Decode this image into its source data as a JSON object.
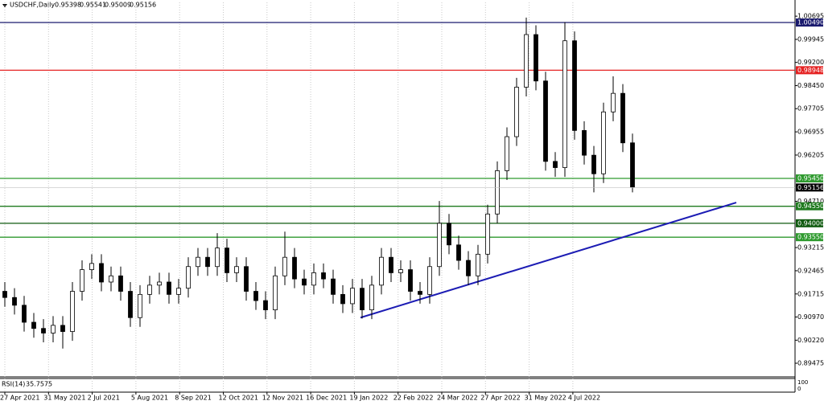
{
  "chart_data": {
    "type": "candlestick",
    "symbol": "USDCHF,Daily",
    "last_bar": [
      0.95398,
      0.95541,
      0.95009,
      0.95156
    ],
    "open": [
      0.918,
      0.916,
      0.9135,
      0.908,
      0.906,
      0.9045,
      0.907,
      0.905,
      0.918,
      0.925,
      0.927,
      0.921,
      0.923,
      0.918,
      0.9095,
      0.917,
      0.92,
      0.921,
      0.917,
      0.919,
      0.926,
      0.929,
      0.926,
      0.932,
      0.924,
      0.926,
      0.918,
      0.915,
      0.912,
      0.923,
      0.929,
      0.922,
      0.92,
      0.924,
      0.922,
      0.917,
      0.914,
      0.919,
      0.912,
      0.92,
      0.929,
      0.924,
      0.925,
      0.918,
      0.917,
      0.926,
      0.94,
      0.933,
      0.928,
      0.923,
      0.93,
      0.943,
      0.957,
      0.968,
      0.984,
      1.001,
      0.986,
      0.96,
      0.958,
      0.999,
      0.97,
      0.962,
      0.956,
      0.976,
      0.982,
      0.966
    ],
    "high": [
      0.921,
      0.919,
      0.9165,
      0.911,
      0.909,
      0.91,
      0.91,
      0.921,
      0.928,
      0.93,
      0.93,
      0.926,
      0.926,
      0.921,
      0.92,
      0.923,
      0.924,
      0.924,
      0.922,
      0.929,
      0.932,
      0.932,
      0.9368,
      0.935,
      0.929,
      0.929,
      0.921,
      0.918,
      0.926,
      0.9373,
      0.932,
      0.925,
      0.927,
      0.927,
      0.925,
      0.92,
      0.922,
      0.922,
      0.923,
      0.932,
      0.932,
      0.928,
      0.928,
      0.921,
      0.929,
      0.9472,
      0.943,
      0.936,
      0.931,
      0.933,
      0.946,
      0.96,
      0.971,
      0.987,
      1.0065,
      1.004,
      0.989,
      0.963,
      1.005,
      1.002,
      0.973,
      0.965,
      0.979,
      0.9875,
      0.985,
      0.969
    ],
    "low": [
      0.913,
      0.9105,
      0.905,
      0.903,
      0.9015,
      0.9015,
      0.8995,
      0.902,
      0.915,
      0.922,
      0.918,
      0.918,
      0.915,
      0.9065,
      0.9065,
      0.914,
      0.917,
      0.914,
      0.914,
      0.916,
      0.923,
      0.923,
      0.923,
      0.921,
      0.921,
      0.915,
      0.912,
      0.909,
      0.909,
      0.92,
      0.919,
      0.917,
      0.917,
      0.919,
      0.914,
      0.911,
      0.911,
      0.9092,
      0.909,
      0.917,
      0.921,
      0.921,
      0.915,
      0.914,
      0.914,
      0.923,
      0.93,
      0.925,
      0.92,
      0.92,
      0.927,
      0.94,
      0.954,
      0.965,
      0.981,
      0.983,
      0.957,
      0.955,
      0.955,
      0.967,
      0.959,
      0.95,
      0.953,
      0.973,
      0.963,
      0.95
    ],
    "close": [
      0.916,
      0.9135,
      0.908,
      0.906,
      0.9045,
      0.907,
      0.905,
      0.918,
      0.925,
      0.927,
      0.921,
      0.923,
      0.918,
      0.9095,
      0.917,
      0.92,
      0.921,
      0.917,
      0.919,
      0.926,
      0.929,
      0.926,
      0.932,
      0.924,
      0.926,
      0.918,
      0.915,
      0.912,
      0.923,
      0.929,
      0.922,
      0.92,
      0.924,
      0.922,
      0.917,
      0.914,
      0.919,
      0.912,
      0.92,
      0.929,
      0.924,
      0.925,
      0.918,
      0.917,
      0.926,
      0.94,
      0.933,
      0.928,
      0.923,
      0.93,
      0.943,
      0.957,
      0.968,
      0.984,
      1.001,
      0.986,
      0.96,
      0.958,
      0.999,
      0.97,
      0.962,
      0.956,
      0.976,
      0.982,
      0.966,
      0.9516
    ],
    "x_labels": [
      "27 Apr 2021",
      "31 May 2021",
      "2 Jul 2021",
      "5 Aug 2021",
      "8 Sep 2021",
      "12 Oct 2021",
      "12 Nov 2021",
      "16 Dec 2021",
      "19 Jan 2022",
      "22 Feb 2022",
      "24 Mar 2022",
      "27 Apr 2022",
      "31 May 2022",
      "4 Jul 2022"
    ],
    "ylim": [
      0.8906,
      1.0114
    ],
    "yticks": [
      1.00695,
      0.99945,
      {
        "value": 0.992,
        "label": "0.99200"
      },
      {
        "value": 0.9845,
        "label": "0.98450"
      },
      0.97705,
      0.96955,
      0.96205,
      {
        "value": 0.9471,
        "label": "0.94710"
      },
      0.93215,
      0.92465,
      0.91715,
      {
        "value": 0.9097,
        "label": "0.90970"
      },
      {
        "value": 0.9022,
        "label": "0.90220"
      },
      0.89475
    ],
    "levels": [
      {
        "value": 1.0049,
        "label": "1.00490",
        "color": "#1a1a6e"
      },
      {
        "value": 0.98948,
        "color": "#e52222"
      },
      {
        "value": 0.9545,
        "label": "0.95450",
        "color": "#2e9a2e"
      },
      {
        "value": 0.9455,
        "label": "0.94550",
        "color": "#1f7a1f"
      },
      {
        "value": 0.94,
        "label": "0.94000",
        "color": "#0f5a0f"
      },
      {
        "value": 0.9355,
        "label": "0.93550",
        "color": "#2e9a2e"
      }
    ],
    "current_price": 0.95156,
    "trendline": {
      "color": "#1c1cb4",
      "values": [
        0.9095,
        0.9467
      ]
    },
    "rsi": {
      "label": "RSI(14)",
      "value": 35.7575,
      "ticks": [
        100,
        0
      ]
    }
  }
}
